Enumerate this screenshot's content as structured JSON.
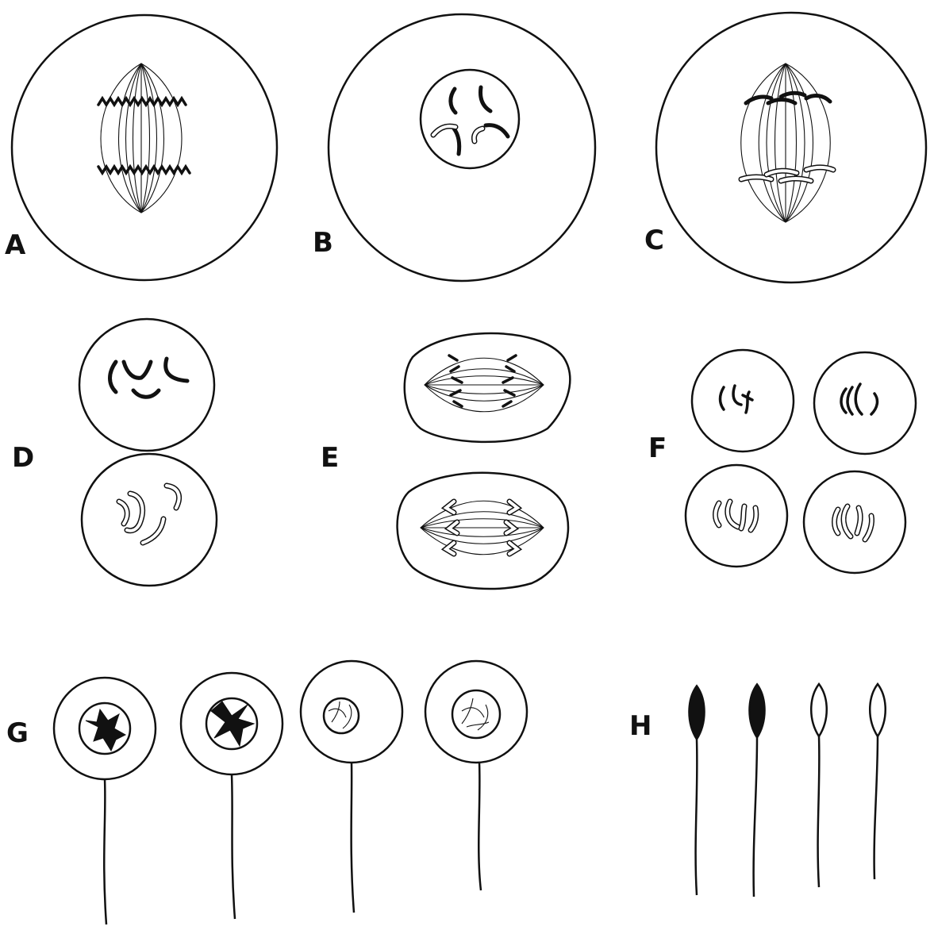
{
  "panels": [
    {
      "id": "A",
      "label": "A"
    },
    {
      "id": "B",
      "label": "B"
    },
    {
      "id": "C",
      "label": "C"
    },
    {
      "id": "D",
      "label": "D"
    },
    {
      "id": "E",
      "label": "E"
    },
    {
      "id": "F",
      "label": "F"
    },
    {
      "id": "G",
      "label": "G"
    },
    {
      "id": "H",
      "label": "H"
    }
  ]
}
